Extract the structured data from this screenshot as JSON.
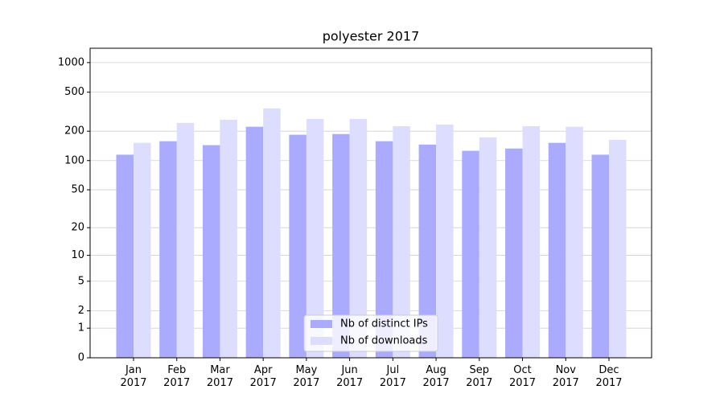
{
  "chart_data": {
    "type": "bar",
    "title": "polyester 2017",
    "categories": [
      "Jan 2017",
      "Feb 2017",
      "Mar 2017",
      "Apr 2017",
      "May 2017",
      "Jun 2017",
      "Jul 2017",
      "Aug 2017",
      "Sep 2017",
      "Oct 2017",
      "Nov 2017",
      "Dec 2017"
    ],
    "series": [
      {
        "name": "Nb of distinct IPs",
        "color": "#aaaaff",
        "values": [
          115,
          158,
          144,
          222,
          184,
          187,
          158,
          146,
          126,
          133,
          152,
          115
        ]
      },
      {
        "name": "Nb of downloads",
        "color": "#ddddff",
        "values": [
          152,
          243,
          262,
          342,
          267,
          267,
          225,
          234,
          173,
          225,
          222,
          163
        ]
      }
    ],
    "yscale": "log1p",
    "ylim": [
      0,
      1400
    ],
    "yticks": [
      0,
      1,
      2,
      5,
      10,
      20,
      50,
      100,
      200,
      500,
      1000
    ],
    "grid": true,
    "legend": "lower center"
  }
}
